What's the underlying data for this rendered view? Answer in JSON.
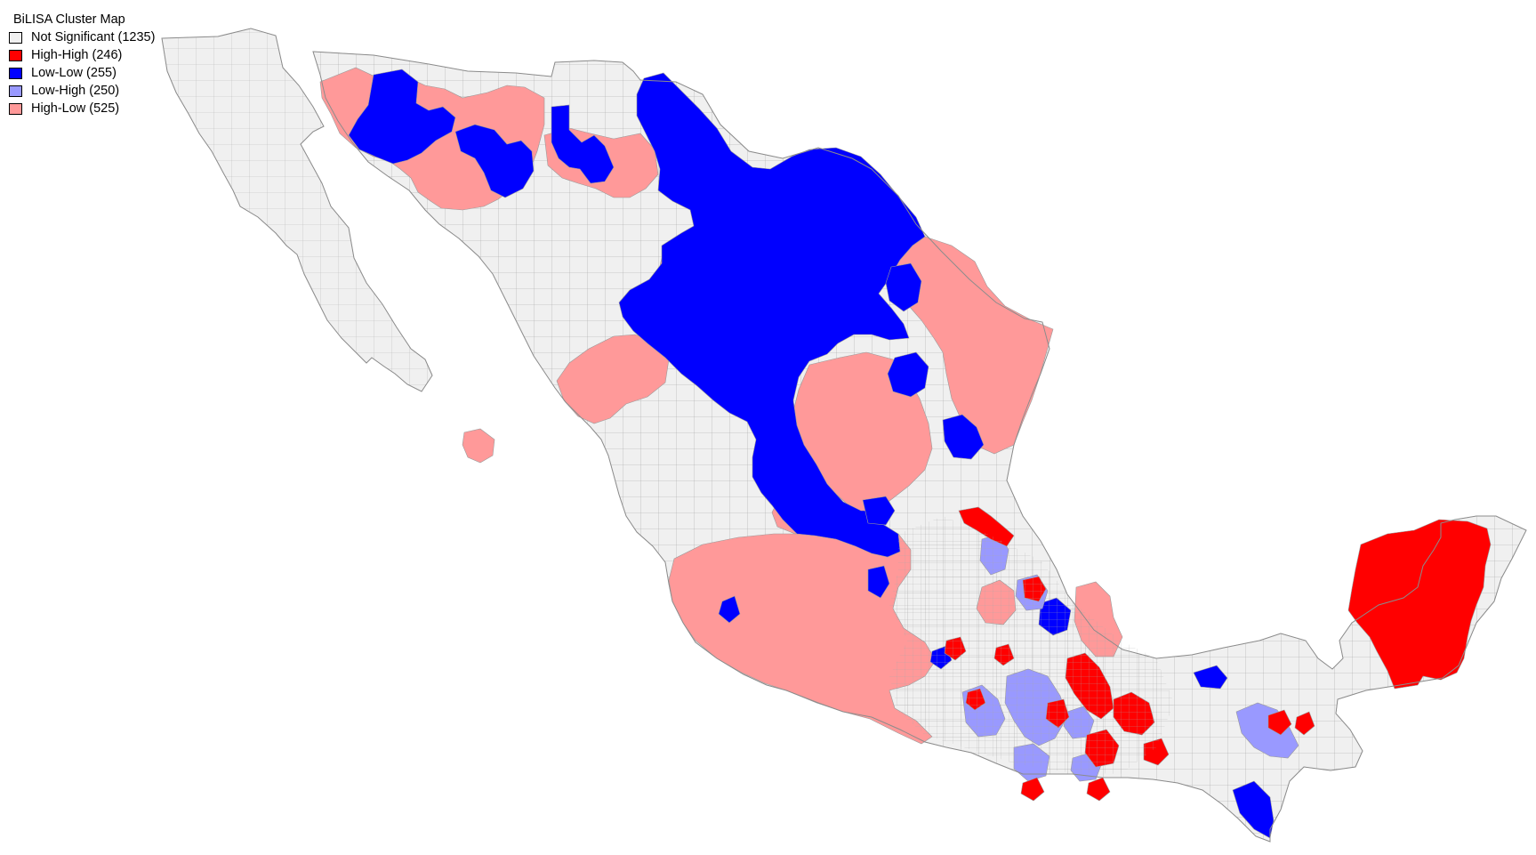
{
  "legend": {
    "title": "BiLISA Cluster Map",
    "items": [
      {
        "label": "Not Significant (1235)",
        "color": "#f0f0f0",
        "cluster": "not-significant",
        "count": 1235
      },
      {
        "label": "High-High (246)",
        "color": "#ff0000",
        "cluster": "high-high",
        "count": 246
      },
      {
        "label": "Low-Low (255)",
        "color": "#0000ff",
        "cluster": "low-low",
        "count": 255
      },
      {
        "label": "Low-High (250)",
        "color": "#9999ff",
        "cluster": "low-high",
        "count": 250
      },
      {
        "label": "High-Low (525)",
        "color": "#ff9999",
        "cluster": "high-low",
        "count": 525
      }
    ]
  },
  "colors": {
    "background": "#ffffff",
    "boundary": "#9a9a9a",
    "not_significant": "#f0f0f0",
    "high_high": "#ff0000",
    "low_low": "#0000ff",
    "low_high": "#9999ff",
    "high_low": "#ff9999"
  }
}
